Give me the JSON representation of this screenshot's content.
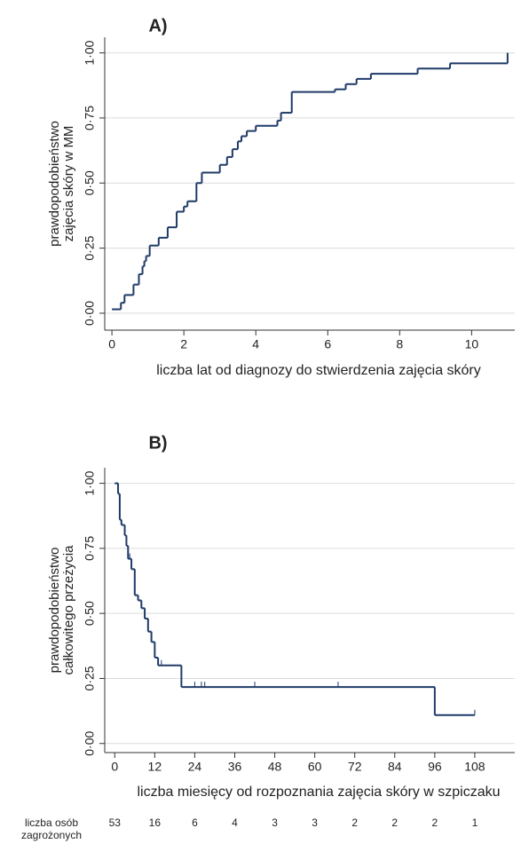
{
  "chart_data": [
    {
      "type": "step",
      "title": "A)",
      "ylabel": [
        "prawdopodobieństwo",
        "zajęcia skóry w MM"
      ],
      "xlabel": "liczba lat od diagnozy do stwierdzenia zajęcia skóry",
      "x": [
        0,
        0.25,
        0.35,
        0.6,
        0.75,
        0.85,
        0.9,
        0.95,
        1.05,
        1.3,
        1.55,
        1.8,
        2.0,
        2.1,
        2.35,
        2.5,
        3.0,
        3.2,
        3.35,
        3.5,
        3.6,
        3.75,
        4.0,
        4.6,
        4.7,
        5.0,
        6.2,
        6.5,
        6.8,
        7.2,
        8.5,
        9.4,
        11.0
      ],
      "values": [
        0.015,
        0.04,
        0.07,
        0.11,
        0.15,
        0.18,
        0.2,
        0.22,
        0.26,
        0.29,
        0.33,
        0.39,
        0.41,
        0.43,
        0.5,
        0.54,
        0.57,
        0.6,
        0.63,
        0.66,
        0.68,
        0.7,
        0.72,
        0.74,
        0.77,
        0.85,
        0.86,
        0.88,
        0.9,
        0.92,
        0.94,
        0.96,
        1.0
      ],
      "color": "#1f3a68",
      "xlim": [
        -0.2,
        11.2
      ],
      "ylim": [
        -0.065,
        1.06
      ],
      "xticks": [
        0,
        2,
        4,
        6,
        8,
        10
      ],
      "yticks": [
        {
          "value": 0,
          "label": "0·00"
        },
        {
          "value": 0.25,
          "label": "0·25"
        },
        {
          "value": 0.5,
          "label": "0·50"
        },
        {
          "value": 0.75,
          "label": "0·75"
        },
        {
          "value": 1,
          "label": "1·00"
        }
      ],
      "grid": true
    },
    {
      "type": "step",
      "title": "B)",
      "ylabel": [
        "prawdopodobieństwo",
        "całkowitego przeżycia"
      ],
      "xlabel": "liczba miesięcy od rozpoznania zajęcia skóry w szpiczaku",
      "x": [
        0,
        1,
        1.5,
        2,
        3,
        3.5,
        4,
        5,
        6,
        7,
        8,
        9,
        10,
        11,
        12,
        13,
        20,
        96,
        108
      ],
      "values": [
        1,
        0.96,
        0.86,
        0.84,
        0.8,
        0.76,
        0.71,
        0.67,
        0.57,
        0.55,
        0.52,
        0.48,
        0.43,
        0.39,
        0.33,
        0.3,
        0.217,
        0.109,
        0.109
      ],
      "censored": {
        "x": [
          3,
          4.5,
          14,
          24,
          26,
          27,
          42,
          67,
          108
        ],
        "values": [
          0.8,
          0.71,
          0.3,
          0.217,
          0.217,
          0.217,
          0.217,
          0.217,
          0.109
        ]
      },
      "color": "#1f3a68",
      "xlim": [
        -3,
        120
      ],
      "ylim": [
        -0.035,
        1.06
      ],
      "xticks": [
        0,
        12,
        24,
        36,
        48,
        60,
        72,
        84,
        96,
        108
      ],
      "yticks": [
        {
          "value": 0,
          "label": "0·00"
        },
        {
          "value": 0.25,
          "label": "0·25"
        },
        {
          "value": 0.5,
          "label": "0·50"
        },
        {
          "value": 0.75,
          "label": "0·75"
        },
        {
          "value": 1,
          "label": "1·00"
        }
      ],
      "grid": true,
      "at_risk": {
        "label": [
          "liczba osób",
          "zagrożonych"
        ],
        "counts": [
          53,
          16,
          6,
          4,
          3,
          3,
          2,
          2,
          2,
          1
        ]
      }
    }
  ]
}
